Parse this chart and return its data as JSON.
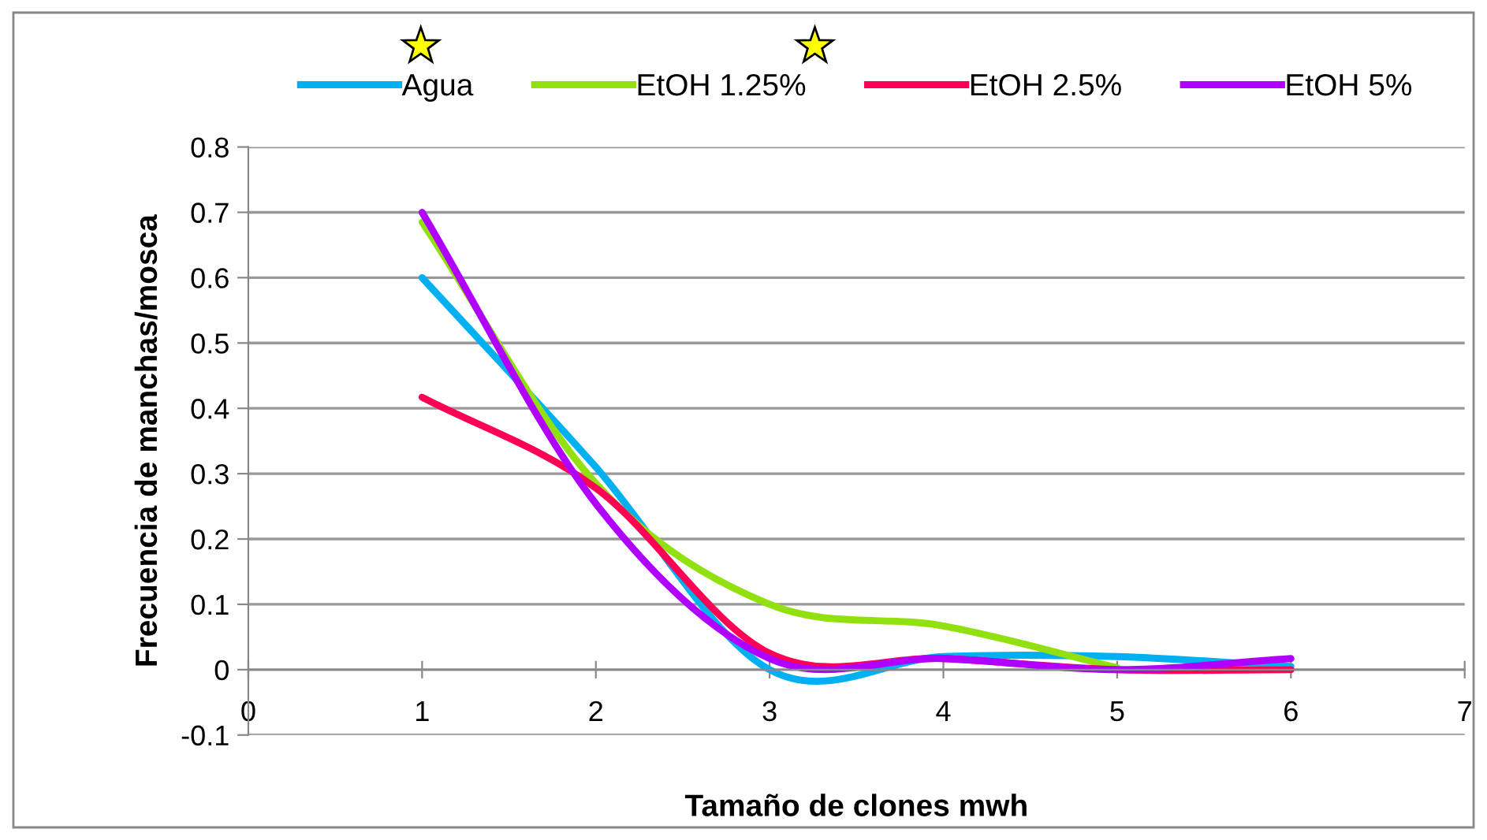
{
  "chart_data": {
    "type": "line",
    "xlabel": "Tamaño de clones mwh",
    "ylabel": "Frecuencia de manchas/mosca",
    "x": [
      1,
      2,
      3,
      4,
      5,
      6
    ],
    "series": [
      {
        "name": "Agua",
        "color": "#00b0f0",
        "values": [
          0.6,
          0.31,
          0.0,
          0.02,
          0.02,
          0.005
        ]
      },
      {
        "name": "EtOH 1.25%",
        "color": "#92e00f",
        "values": [
          0.685,
          0.285,
          0.1,
          0.067,
          0.003,
          null
        ]
      },
      {
        "name": "EtOH 2.5%",
        "color": "#ff0055",
        "values": [
          0.417,
          0.278,
          0.025,
          0.017,
          0.0,
          0.0
        ]
      },
      {
        "name": "EtOH 5%",
        "color": "#b000ff",
        "values": [
          0.7,
          0.254,
          0.017,
          0.017,
          0.0,
          0.017
        ]
      }
    ],
    "xlim": [
      0,
      7
    ],
    "xticks": [
      0,
      1,
      2,
      3,
      4,
      5,
      6,
      7
    ],
    "ylim": [
      -0.1,
      0.8
    ],
    "yticks": [
      -0.1,
      0,
      0.1,
      0.2,
      0.3,
      0.4,
      0.5,
      0.6,
      0.7,
      0.8
    ],
    "grid": "y",
    "legend": "top",
    "marker": "none",
    "line_style": "solid"
  }
}
